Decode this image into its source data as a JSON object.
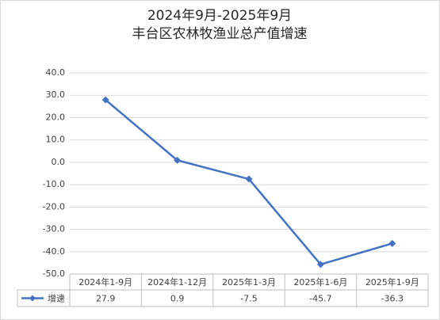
{
  "chart_data": {
    "type": "line",
    "title": "2024年9月-2025年9月",
    "subtitle": "丰台区农林牧渔业总产值增速",
    "categories": [
      "2024年1-9月",
      "2024年1-12月",
      "2025年1-3月",
      "2025年1-6月",
      "2025年1-9月"
    ],
    "series": [
      {
        "name": "增速",
        "color": "#4472c4",
        "values": [
          27.9,
          0.9,
          -7.5,
          -45.7,
          -36.3
        ]
      }
    ],
    "ylim": [
      -50,
      40
    ],
    "yticks": [
      {
        "value": 40,
        "label": "40.0"
      },
      {
        "value": 30,
        "label": "30.0"
      },
      {
        "value": 20,
        "label": "20.0"
      },
      {
        "value": 10,
        "label": "10.0"
      },
      {
        "value": 0,
        "label": "0.0"
      },
      {
        "value": -10,
        "label": "-10.0"
      },
      {
        "value": -20,
        "label": "-20.0"
      },
      {
        "value": -30,
        "label": "-30.0"
      },
      {
        "value": -40,
        "label": "-40.0"
      },
      {
        "value": -50,
        "label": "-50.0"
      }
    ],
    "grid": true,
    "data_table": true
  }
}
